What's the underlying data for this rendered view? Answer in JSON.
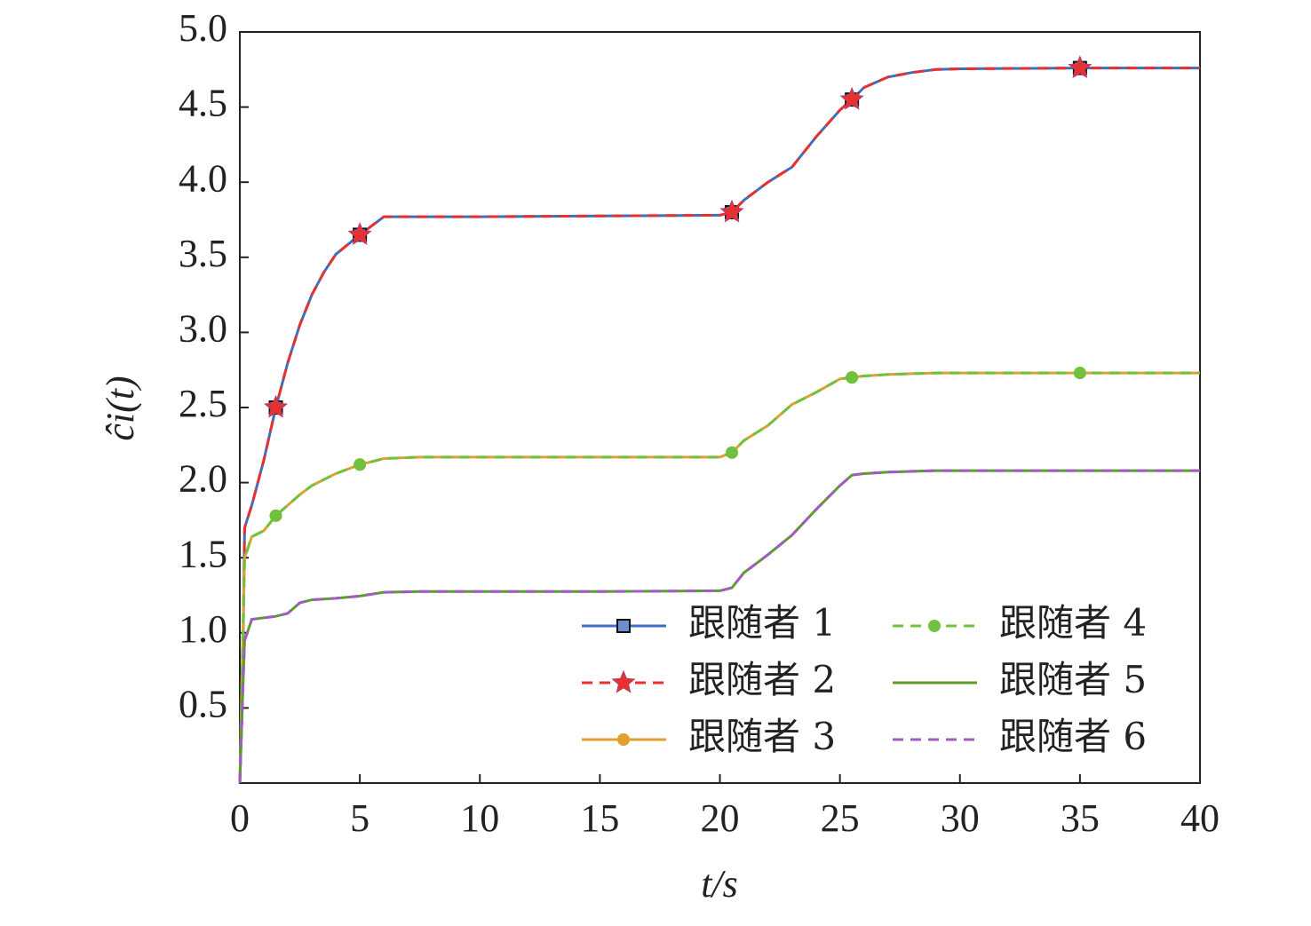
{
  "chart_data": {
    "type": "line",
    "x_label": "t/s",
    "y_label": "ĉi(t)",
    "x": [
      0,
      0.1,
      0.2,
      0.5,
      1,
      1.5,
      2,
      2.5,
      3,
      3.5,
      4,
      5,
      6,
      7.5,
      10,
      15,
      20,
      20.5,
      21,
      22,
      23,
      24,
      25,
      25.5,
      26,
      27,
      28,
      29,
      30,
      35,
      40
    ],
    "series": [
      {
        "name": "跟随者 1",
        "color": "#3d6fc0",
        "dash": false,
        "marker": "square",
        "values": [
          0,
          0.5,
          1.7,
          1.85,
          2.15,
          2.5,
          2.8,
          3.05,
          3.25,
          3.4,
          3.52,
          3.65,
          3.77,
          3.77,
          3.77,
          3.775,
          3.78,
          3.8,
          3.88,
          4.0,
          4.1,
          4.3,
          4.48,
          4.55,
          4.63,
          4.7,
          4.73,
          4.75,
          4.755,
          4.76,
          4.76
        ]
      },
      {
        "name": "跟随者 2",
        "color": "#e8312f",
        "dash": true,
        "marker": "star",
        "values": [
          0,
          0.5,
          1.7,
          1.85,
          2.15,
          2.5,
          2.8,
          3.05,
          3.25,
          3.4,
          3.52,
          3.65,
          3.77,
          3.77,
          3.77,
          3.775,
          3.78,
          3.8,
          3.88,
          4.0,
          4.1,
          4.3,
          4.48,
          4.55,
          4.63,
          4.7,
          4.73,
          4.75,
          4.755,
          4.76,
          4.76
        ]
      },
      {
        "name": "跟随者 3",
        "color": "#e0a030",
        "dash": false,
        "marker": "circle",
        "values": [
          0,
          0.8,
          1.5,
          1.64,
          1.68,
          1.78,
          1.85,
          1.92,
          1.98,
          2.02,
          2.06,
          2.12,
          2.16,
          2.17,
          2.17,
          2.17,
          2.17,
          2.2,
          2.28,
          2.38,
          2.52,
          2.6,
          2.69,
          2.7,
          2.71,
          2.72,
          2.725,
          2.73,
          2.73,
          2.73,
          2.73
        ]
      },
      {
        "name": "跟随者 4",
        "color": "#72c040",
        "dash": true,
        "marker": "circle",
        "values": [
          0,
          0.8,
          1.5,
          1.64,
          1.68,
          1.78,
          1.85,
          1.92,
          1.98,
          2.02,
          2.06,
          2.12,
          2.16,
          2.17,
          2.17,
          2.17,
          2.17,
          2.2,
          2.28,
          2.38,
          2.52,
          2.6,
          2.69,
          2.7,
          2.71,
          2.72,
          2.725,
          2.73,
          2.73,
          2.73,
          2.73
        ]
      },
      {
        "name": "跟随者 5",
        "color": "#5a9e2c",
        "dash": false,
        "marker": null,
        "values": [
          0,
          0.5,
          0.95,
          1.09,
          1.1,
          1.11,
          1.13,
          1.2,
          1.22,
          1.225,
          1.23,
          1.245,
          1.27,
          1.275,
          1.275,
          1.275,
          1.28,
          1.3,
          1.4,
          1.52,
          1.65,
          1.82,
          1.98,
          2.05,
          2.06,
          2.07,
          2.075,
          2.08,
          2.08,
          2.08,
          2.08
        ]
      },
      {
        "name": "跟随者 6",
        "color": "#a05cc0",
        "dash": true,
        "marker": null,
        "values": [
          0,
          0.5,
          0.95,
          1.09,
          1.1,
          1.11,
          1.13,
          1.2,
          1.22,
          1.225,
          1.23,
          1.245,
          1.27,
          1.275,
          1.275,
          1.275,
          1.28,
          1.3,
          1.4,
          1.52,
          1.65,
          1.82,
          1.98,
          2.05,
          2.06,
          2.07,
          2.075,
          2.08,
          2.08,
          2.08,
          2.08
        ]
      }
    ],
    "xlim": [
      0,
      40
    ],
    "xticks": [
      0,
      5,
      10,
      15,
      20,
      25,
      30,
      35,
      40
    ],
    "ylim": [
      0,
      5
    ],
    "yticks": [
      0.5,
      {
        "value": 1,
        "label": "1.0"
      },
      1.5,
      {
        "value": 2,
        "label": "2.0"
      },
      2.5,
      {
        "value": 3,
        "label": "3.0"
      },
      3.5,
      {
        "value": 4,
        "label": "4.0"
      },
      4.5,
      {
        "value": 5,
        "label": "5.0"
      }
    ],
    "grid": false,
    "legend": "lower right"
  }
}
